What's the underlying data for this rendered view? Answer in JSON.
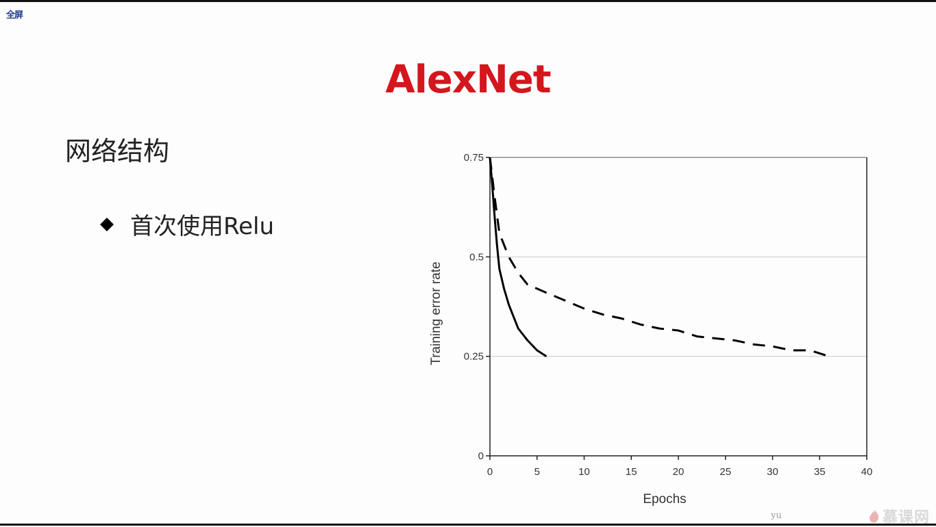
{
  "toolbar": {
    "fullscreen_label": "全屏"
  },
  "slide": {
    "title": "AlexNet",
    "heading": "网络结构",
    "bullets": [
      {
        "icon": "diamond-icon",
        "text": "首次使用Relu"
      }
    ]
  },
  "colors": {
    "title": "#d4161d",
    "text": "#222222",
    "grid": "#c8c8c8",
    "line": "#000000"
  },
  "watermark": {
    "user": "yu",
    "brand": "慕课网",
    "brand_icon": "flame-icon"
  },
  "chart_data": {
    "type": "line",
    "title": "",
    "xlabel": "Epochs",
    "ylabel": "Training error rate",
    "xlim": [
      0,
      40
    ],
    "ylim": [
      0,
      0.75
    ],
    "xticks": [
      0,
      5,
      10,
      15,
      20,
      25,
      30,
      35,
      40
    ],
    "yticks": [
      0,
      0.25,
      0.5,
      0.75
    ],
    "ytick_labels": [
      "0",
      "0.25",
      "0.5",
      "0.75"
    ],
    "grid": "horizontal",
    "legend": "none",
    "series": [
      {
        "style": "solid",
        "x": [
          0,
          0.25,
          0.5,
          0.75,
          1,
          1.5,
          2,
          3,
          4,
          5,
          6
        ],
        "y": [
          0.75,
          0.68,
          0.6,
          0.53,
          0.47,
          0.42,
          0.38,
          0.32,
          0.29,
          0.265,
          0.25
        ]
      },
      {
        "style": "dashed",
        "x": [
          0,
          0.5,
          1,
          2,
          3,
          4,
          5,
          6,
          7,
          8,
          9,
          10,
          12,
          14,
          16,
          18,
          20,
          22,
          24,
          26,
          28,
          30,
          32,
          34,
          36
        ],
        "y": [
          0.75,
          0.65,
          0.56,
          0.5,
          0.46,
          0.43,
          0.42,
          0.41,
          0.4,
          0.39,
          0.38,
          0.37,
          0.355,
          0.345,
          0.33,
          0.32,
          0.315,
          0.3,
          0.295,
          0.29,
          0.28,
          0.275,
          0.265,
          0.265,
          0.25
        ]
      }
    ]
  }
}
